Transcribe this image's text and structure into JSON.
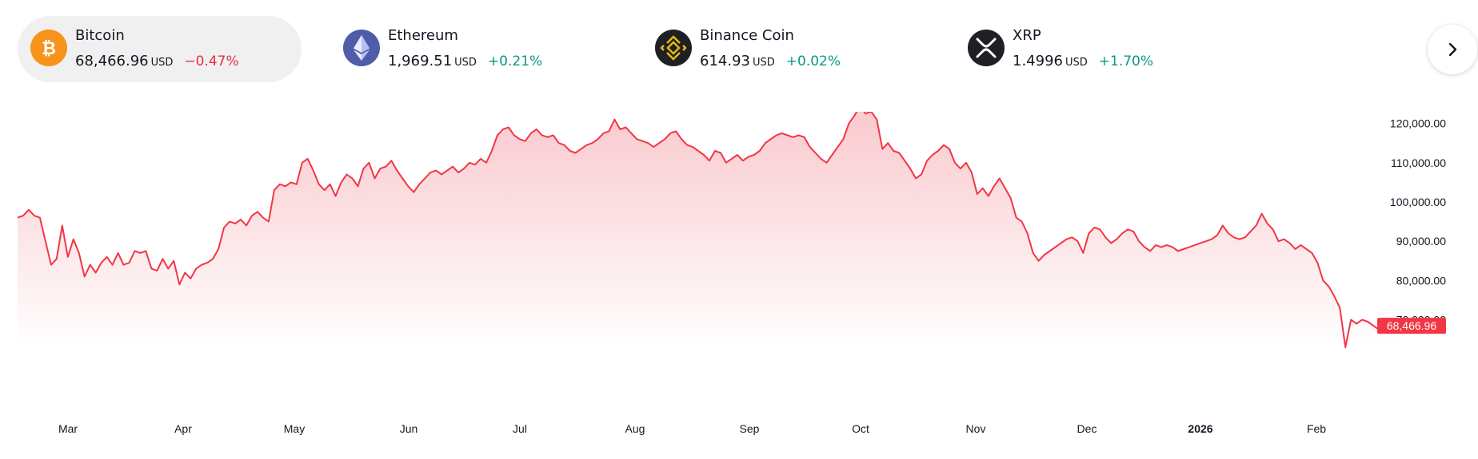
{
  "tickers": [
    {
      "name": "Bitcoin",
      "price": "68,466.96",
      "unit": "USD",
      "change": "−0.47%",
      "direction": "down",
      "icon": "bitcoin-icon",
      "icon_color": "#f7931a",
      "active": true
    },
    {
      "name": "Ethereum",
      "price": "1,969.51",
      "unit": "USD",
      "change": "+0.21%",
      "direction": "up",
      "icon": "ethereum-icon",
      "icon_color": "#4f5da8",
      "active": false
    },
    {
      "name": "Binance Coin",
      "price": "614.93",
      "unit": "USD",
      "change": "+0.02%",
      "direction": "up",
      "icon": "binance-icon",
      "icon_color": "#1e2026",
      "active": false
    },
    {
      "name": "XRP",
      "price": "1.4996",
      "unit": "USD",
      "change": "+1.70%",
      "direction": "up",
      "icon": "xrp-icon",
      "icon_color": "#1e2026",
      "active": false
    }
  ],
  "next_button_icon": "chevron-right-icon",
  "colors": {
    "line": "#f23645",
    "fill_top": "#f9c6cb",
    "negative": "#e6303e",
    "positive": "#089981"
  },
  "chart_data": {
    "type": "area",
    "series": [
      {
        "values": [
          96000,
          96500,
          98000,
          96500,
          96000,
          90000,
          84000,
          85500,
          94000,
          86000,
          90500,
          87000,
          81000,
          84000,
          82000,
          84500,
          86000,
          84000,
          87000,
          84000,
          84500,
          87500,
          87000,
          87500,
          83000,
          82500,
          85500,
          83000,
          85000,
          79000,
          82000,
          80500,
          83000,
          84000,
          84500,
          85500,
          88000,
          93500,
          95000,
          94500,
          95500,
          94000,
          96500,
          97500,
          96000,
          95000,
          103000,
          104500,
          104000,
          105000,
          104500,
          110000,
          111000,
          108000,
          104500,
          103000,
          104500,
          101500,
          105000,
          107000,
          106000,
          104000,
          108500,
          110000,
          106000,
          108500,
          109000,
          110500,
          108000,
          106000,
          104000,
          102500,
          104500,
          106000,
          107500,
          108000,
          107000,
          108000,
          109000,
          107500,
          108500,
          110000,
          109500,
          111000,
          110000,
          113000,
          117000,
          118500,
          119000,
          117000,
          116000,
          115500,
          117500,
          118500,
          117000,
          116500,
          117000,
          115000,
          114500,
          113000,
          112500,
          113500,
          114500,
          115000,
          116000,
          117500,
          118000,
          121000,
          118500,
          119000,
          117500,
          116000,
          115500,
          115000,
          114000,
          115000,
          116000,
          117500,
          118000,
          116000,
          114500,
          114000,
          113000,
          112000,
          110500,
          113000,
          112500,
          110000,
          111000,
          112000,
          110500,
          111500,
          112000,
          113000,
          115000,
          116000,
          117000,
          117500,
          117000,
          116500,
          117000,
          116500,
          114000,
          112500,
          111000,
          110000,
          112000,
          114000,
          116000,
          120000,
          122000,
          124500,
          122500,
          123000,
          121000,
          113500,
          115000,
          113000,
          112500,
          110500,
          108500,
          106000,
          107000,
          110500,
          112000,
          113000,
          114500,
          113500,
          110000,
          108500,
          110000,
          107500,
          102000,
          103500,
          101500,
          104000,
          106000,
          103500,
          101000,
          96000,
          95000,
          92000,
          87000,
          85000,
          86500,
          87500,
          88500,
          89500,
          90500,
          91000,
          90000,
          87000,
          92000,
          93500,
          93000,
          91000,
          89500,
          90500,
          92000,
          93000,
          92500,
          90000,
          88500,
          87500,
          89000,
          88500,
          89000,
          88500,
          87500,
          88000,
          88500,
          89000,
          89500,
          90000,
          90500,
          91500,
          94000,
          92000,
          91000,
          90500,
          91000,
          92500,
          94000,
          97000,
          94500,
          93000,
          90000,
          90500,
          89500,
          88000,
          89000,
          88000,
          87000,
          84500,
          80000,
          78500,
          76000,
          73000,
          63000,
          70000,
          69000,
          70000,
          69500,
          68500,
          67500,
          67000,
          68000,
          69000,
          68466.96
        ]
      }
    ],
    "x_labels": [
      "Mar",
      "Apr",
      "May",
      "Jun",
      "Jul",
      "Aug",
      "Sep",
      "Oct",
      "Nov",
      "Dec",
      "2026",
      "Feb"
    ],
    "x_label_bold": [
      false,
      false,
      false,
      false,
      false,
      false,
      false,
      false,
      false,
      false,
      true,
      false
    ],
    "y_ticks": [
      70000,
      80000,
      90000,
      100000,
      110000,
      120000
    ],
    "y_tick_labels": [
      "70,000.00",
      "80,000.00",
      "90,000.00",
      "100,000.00",
      "110,000.00",
      "120,000.00"
    ],
    "ylim": [
      63000,
      125000
    ],
    "last_value_label": "68,466.96",
    "grid": false,
    "y_axis_side": "right"
  }
}
